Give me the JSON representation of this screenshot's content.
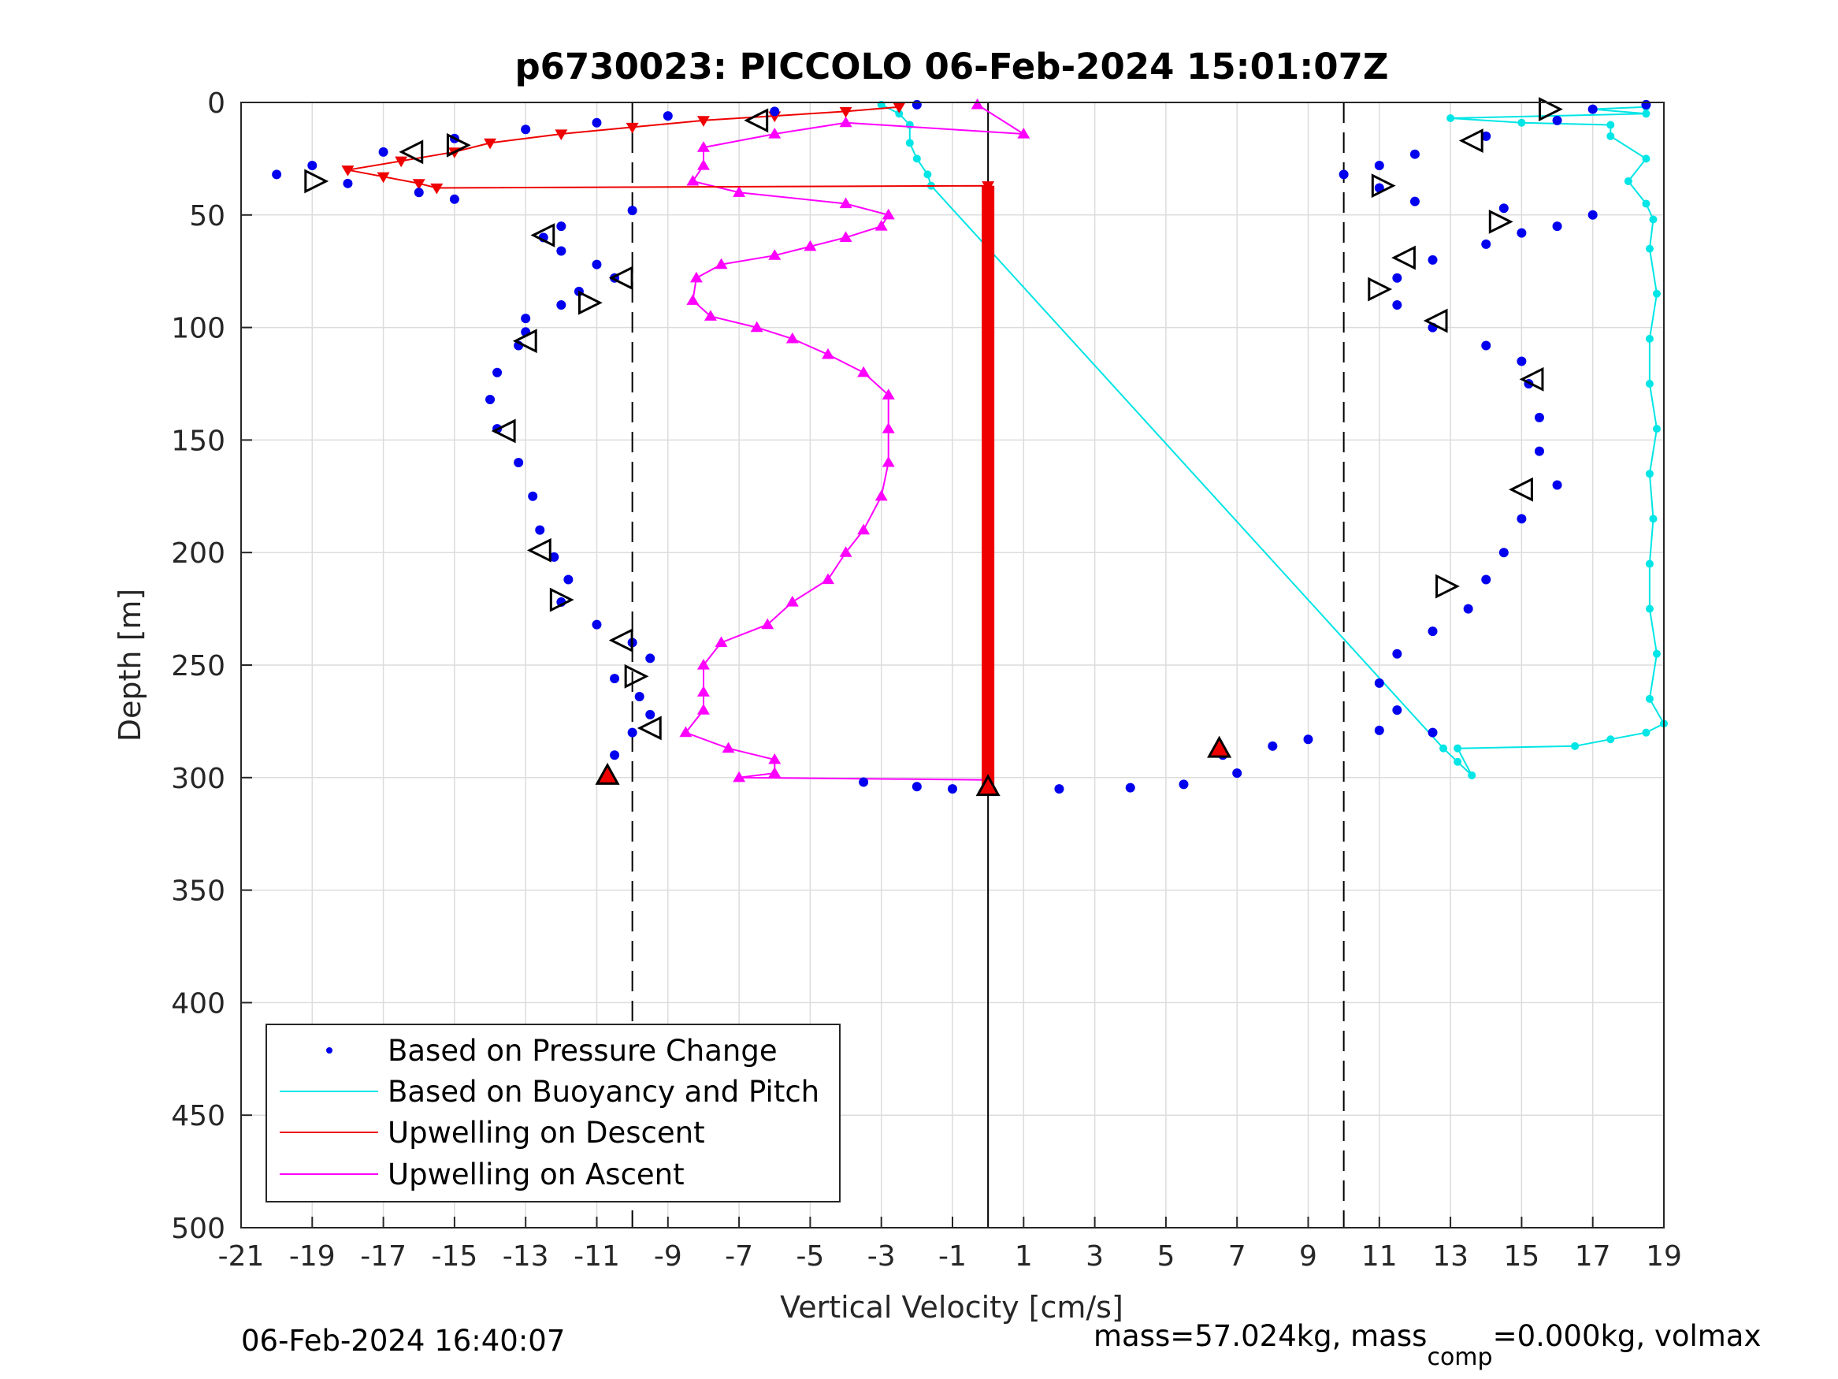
{
  "chart_data": {
    "type": "scatter",
    "title": "p6730023: PICCOLO 06-Feb-2024 15:01:07Z",
    "xlabel": "Vertical Velocity [cm/s]",
    "ylabel": "Depth [m]",
    "xlim": [
      -21,
      19
    ],
    "ylim": [
      0,
      500
    ],
    "y_reversed": true,
    "grid": true,
    "legend_position": "bottom-left",
    "x_ticks": [
      "-21",
      "-19",
      "-17",
      "-15",
      "-13",
      "-11",
      "-9",
      "-7",
      "-5",
      "-3",
      "-1",
      "1",
      "3",
      "5",
      "7",
      "9",
      "11",
      "13",
      "15",
      "17",
      "19"
    ],
    "y_ticks": [
      "0",
      "50",
      "100",
      "150",
      "200",
      "250",
      "300",
      "350",
      "400",
      "450",
      "500"
    ],
    "reference_lines": [
      {
        "x": -10,
        "style": "dashed"
      },
      {
        "x": 10,
        "style": "dashed"
      },
      {
        "x": 0,
        "style": "solid"
      }
    ],
    "series": [
      {
        "name": "Based on Pressure Change",
        "color": "#0000ee",
        "marker": "dot",
        "branches": [
          {
            "points": [
              [
                -2,
                1
              ],
              [
                -6,
                4
              ],
              [
                -9,
                6
              ],
              [
                -11,
                9
              ],
              [
                -13,
                12
              ],
              [
                -15,
                16
              ],
              [
                -17,
                22
              ],
              [
                -19,
                28
              ],
              [
                -20,
                32
              ],
              [
                -18,
                36
              ],
              [
                -16,
                40
              ],
              [
                -15,
                43
              ]
            ]
          },
          {
            "points": [
              [
                -10,
                48
              ],
              [
                -12,
                55
              ],
              [
                -12.5,
                60
              ],
              [
                -12,
                66
              ],
              [
                -11,
                72
              ],
              [
                -10.5,
                78
              ],
              [
                -11.5,
                84
              ],
              [
                -12,
                90
              ],
              [
                -13,
                96
              ],
              [
                -13,
                102
              ],
              [
                -13.2,
                108
              ],
              [
                -13.8,
                120
              ],
              [
                -14,
                132
              ],
              [
                -13.8,
                145
              ],
              [
                -13.2,
                160
              ],
              [
                -12.8,
                175
              ],
              [
                -12.6,
                190
              ],
              [
                -12.2,
                202
              ],
              [
                -11.8,
                212
              ],
              [
                -12,
                222
              ],
              [
                -11,
                232
              ],
              [
                -10,
                240
              ],
              [
                -9.5,
                247
              ],
              [
                -10.5,
                256
              ],
              [
                -9.8,
                264
              ],
              [
                -9.5,
                272
              ],
              [
                -10,
                280
              ],
              [
                -10.5,
                290
              ],
              [
                -10.7,
                298
              ]
            ]
          },
          {
            "points": [
              [
                -3.5,
                302
              ],
              [
                -2,
                304
              ],
              [
                -1,
                305
              ]
            ]
          },
          {
            "points": [
              [
                2,
                305
              ],
              [
                4,
                304.5
              ],
              [
                5.5,
                303
              ],
              [
                7,
                298
              ],
              [
                6.6,
                290
              ],
              [
                8,
                286
              ],
              [
                9,
                283
              ],
              [
                11,
                279
              ]
            ]
          },
          {
            "points": [
              [
                12.5,
                280
              ],
              [
                11.5,
                270
              ],
              [
                11,
                258
              ],
              [
                11.5,
                245
              ],
              [
                12.5,
                235
              ],
              [
                13.5,
                225
              ],
              [
                14,
                212
              ],
              [
                14.5,
                200
              ],
              [
                15,
                185
              ],
              [
                16,
                170
              ],
              [
                15.5,
                155
              ],
              [
                15.5,
                140
              ],
              [
                15.2,
                125
              ],
              [
                15,
                115
              ],
              [
                14,
                108
              ],
              [
                12.5,
                100
              ],
              [
                11.5,
                90
              ],
              [
                11.5,
                78
              ],
              [
                12.5,
                70
              ],
              [
                14,
                63
              ],
              [
                15,
                58
              ],
              [
                16,
                55
              ],
              [
                17,
                50
              ],
              [
                14.5,
                47
              ],
              [
                12,
                44
              ],
              [
                11,
                38
              ],
              [
                10,
                32
              ],
              [
                11,
                28
              ],
              [
                12,
                23
              ],
              [
                14,
                15
              ],
              [
                16,
                8
              ],
              [
                17,
                3
              ],
              [
                18.5,
                1
              ]
            ]
          }
        ]
      },
      {
        "name": "Based on Buoyancy and Pitch",
        "color": "#00e5e5",
        "marker": "line",
        "points": [
          [
            -3,
            1
          ],
          [
            -2.5,
            5
          ],
          [
            -2.2,
            10
          ],
          [
            -2.2,
            18
          ],
          [
            -2,
            25
          ],
          [
            -1.7,
            32
          ],
          [
            -1.6,
            37
          ],
          [
            12.8,
            287
          ],
          [
            13.2,
            293
          ],
          [
            13.6,
            299
          ],
          [
            13.2,
            287
          ],
          [
            16.5,
            286
          ],
          [
            17.5,
            283
          ],
          [
            18.5,
            280
          ],
          [
            19,
            276
          ],
          [
            18.6,
            265
          ],
          [
            18.8,
            245
          ],
          [
            18.6,
            225
          ],
          [
            18.6,
            205
          ],
          [
            18.7,
            185
          ],
          [
            18.6,
            165
          ],
          [
            18.8,
            145
          ],
          [
            18.6,
            125
          ],
          [
            18.6,
            105
          ],
          [
            18.8,
            85
          ],
          [
            18.6,
            65
          ],
          [
            18.7,
            52
          ],
          [
            18.5,
            45
          ],
          [
            18,
            35
          ],
          [
            18.5,
            25
          ],
          [
            17.5,
            15
          ],
          [
            17.5,
            10
          ],
          [
            15,
            9
          ],
          [
            13,
            7
          ],
          [
            18.5,
            5
          ],
          [
            17,
            3
          ],
          [
            18.5,
            2
          ]
        ]
      },
      {
        "name": "Upwelling on Descent",
        "color": "#ee0000",
        "marker": "down-triangle",
        "points": [
          [
            -2.5,
            2
          ],
          [
            -4,
            4
          ],
          [
            -6,
            6
          ],
          [
            -8,
            8
          ],
          [
            -10,
            11
          ],
          [
            -12,
            14
          ],
          [
            -14,
            18
          ],
          [
            -15,
            22
          ],
          [
            -16.5,
            26
          ],
          [
            -18,
            30
          ],
          [
            -17,
            33
          ],
          [
            -16,
            36
          ],
          [
            -15.5,
            38
          ],
          [
            0,
            37
          ],
          [
            0,
            60
          ],
          [
            0,
            100
          ],
          [
            0,
            150
          ],
          [
            0,
            200
          ],
          [
            0,
            250
          ],
          [
            0,
            300
          ],
          [
            0,
            305
          ]
        ]
      },
      {
        "name": "Upwelling on Ascent",
        "color": "#ff00ff",
        "marker": "up-triangle",
        "points": [
          [
            -0.3,
            1
          ],
          [
            1,
            14
          ],
          [
            -4,
            9
          ],
          [
            -6,
            14
          ],
          [
            -8,
            20
          ],
          [
            -8,
            28
          ],
          [
            -8.3,
            35
          ],
          [
            -7,
            40
          ],
          [
            -4,
            45
          ],
          [
            -2.8,
            50
          ],
          [
            -3,
            55
          ],
          [
            -4,
            60
          ],
          [
            -5,
            64
          ],
          [
            -6,
            68
          ],
          [
            -7.5,
            72
          ],
          [
            -8.2,
            78
          ],
          [
            -8.3,
            88
          ],
          [
            -7.8,
            95
          ],
          [
            -6.5,
            100
          ],
          [
            -5.5,
            105
          ],
          [
            -4.5,
            112
          ],
          [
            -3.5,
            120
          ],
          [
            -2.8,
            130
          ],
          [
            -2.8,
            145
          ],
          [
            -2.8,
            160
          ],
          [
            -3,
            175
          ],
          [
            -3.5,
            190
          ],
          [
            -4,
            200
          ],
          [
            -4.5,
            212
          ],
          [
            -5.5,
            222
          ],
          [
            -6.2,
            232
          ],
          [
            -7.5,
            240
          ],
          [
            -8,
            250
          ],
          [
            -8,
            262
          ],
          [
            -8,
            270
          ],
          [
            -8.5,
            280
          ],
          [
            -7.3,
            287
          ],
          [
            -6,
            292
          ],
          [
            -6,
            298
          ],
          [
            -7,
            300
          ],
          [
            0,
            301
          ]
        ]
      }
    ],
    "markers": [
      {
        "type": "triangle-left",
        "x": -6.5,
        "y": 8
      },
      {
        "type": "triangle-left",
        "x": -16.2,
        "y": 22
      },
      {
        "type": "triangle-right",
        "x": -14.9,
        "y": 19
      },
      {
        "type": "triangle-right",
        "x": -18.9,
        "y": 35
      },
      {
        "type": "triangle-left",
        "x": -12.5,
        "y": 59
      },
      {
        "type": "triangle-left",
        "x": -10.3,
        "y": 78
      },
      {
        "type": "triangle-right",
        "x": -11.2,
        "y": 89
      },
      {
        "type": "triangle-left",
        "x": -13,
        "y": 106
      },
      {
        "type": "triangle-left",
        "x": -13.6,
        "y": 146
      },
      {
        "type": "triangle-left",
        "x": -12.6,
        "y": 199
      },
      {
        "type": "triangle-right",
        "x": -12,
        "y": 221
      },
      {
        "type": "triangle-left",
        "x": -10.3,
        "y": 239
      },
      {
        "type": "triangle-right",
        "x": -9.9,
        "y": 255
      },
      {
        "type": "triangle-left",
        "x": -9.5,
        "y": 278
      },
      {
        "type": "triangle-up-red",
        "x": -10.7,
        "y": 299
      },
      {
        "type": "triangle-up-red",
        "x": 0,
        "y": 304
      },
      {
        "type": "triangle-up-red",
        "x": 6.5,
        "y": 287
      },
      {
        "type": "triangle-right",
        "x": 15.8,
        "y": 3
      },
      {
        "type": "triangle-left",
        "x": 13.6,
        "y": 17
      },
      {
        "type": "triangle-right",
        "x": 11.1,
        "y": 37
      },
      {
        "type": "triangle-right",
        "x": 14.4,
        "y": 53
      },
      {
        "type": "triangle-left",
        "x": 11.7,
        "y": 69
      },
      {
        "type": "triangle-right",
        "x": 11,
        "y": 83
      },
      {
        "type": "triangle-left",
        "x": 12.6,
        "y": 97
      },
      {
        "type": "triangle-left",
        "x": 15.3,
        "y": 123
      },
      {
        "type": "triangle-left",
        "x": 15,
        "y": 172
      },
      {
        "type": "triangle-right",
        "x": 12.9,
        "y": 215
      }
    ]
  },
  "footer": {
    "left": "06-Feb-2024 16:40:07",
    "right_main": "mass=57.024kg, mass",
    "right_sub": "comp",
    "right_rest": "=0.000kg, volmax"
  }
}
